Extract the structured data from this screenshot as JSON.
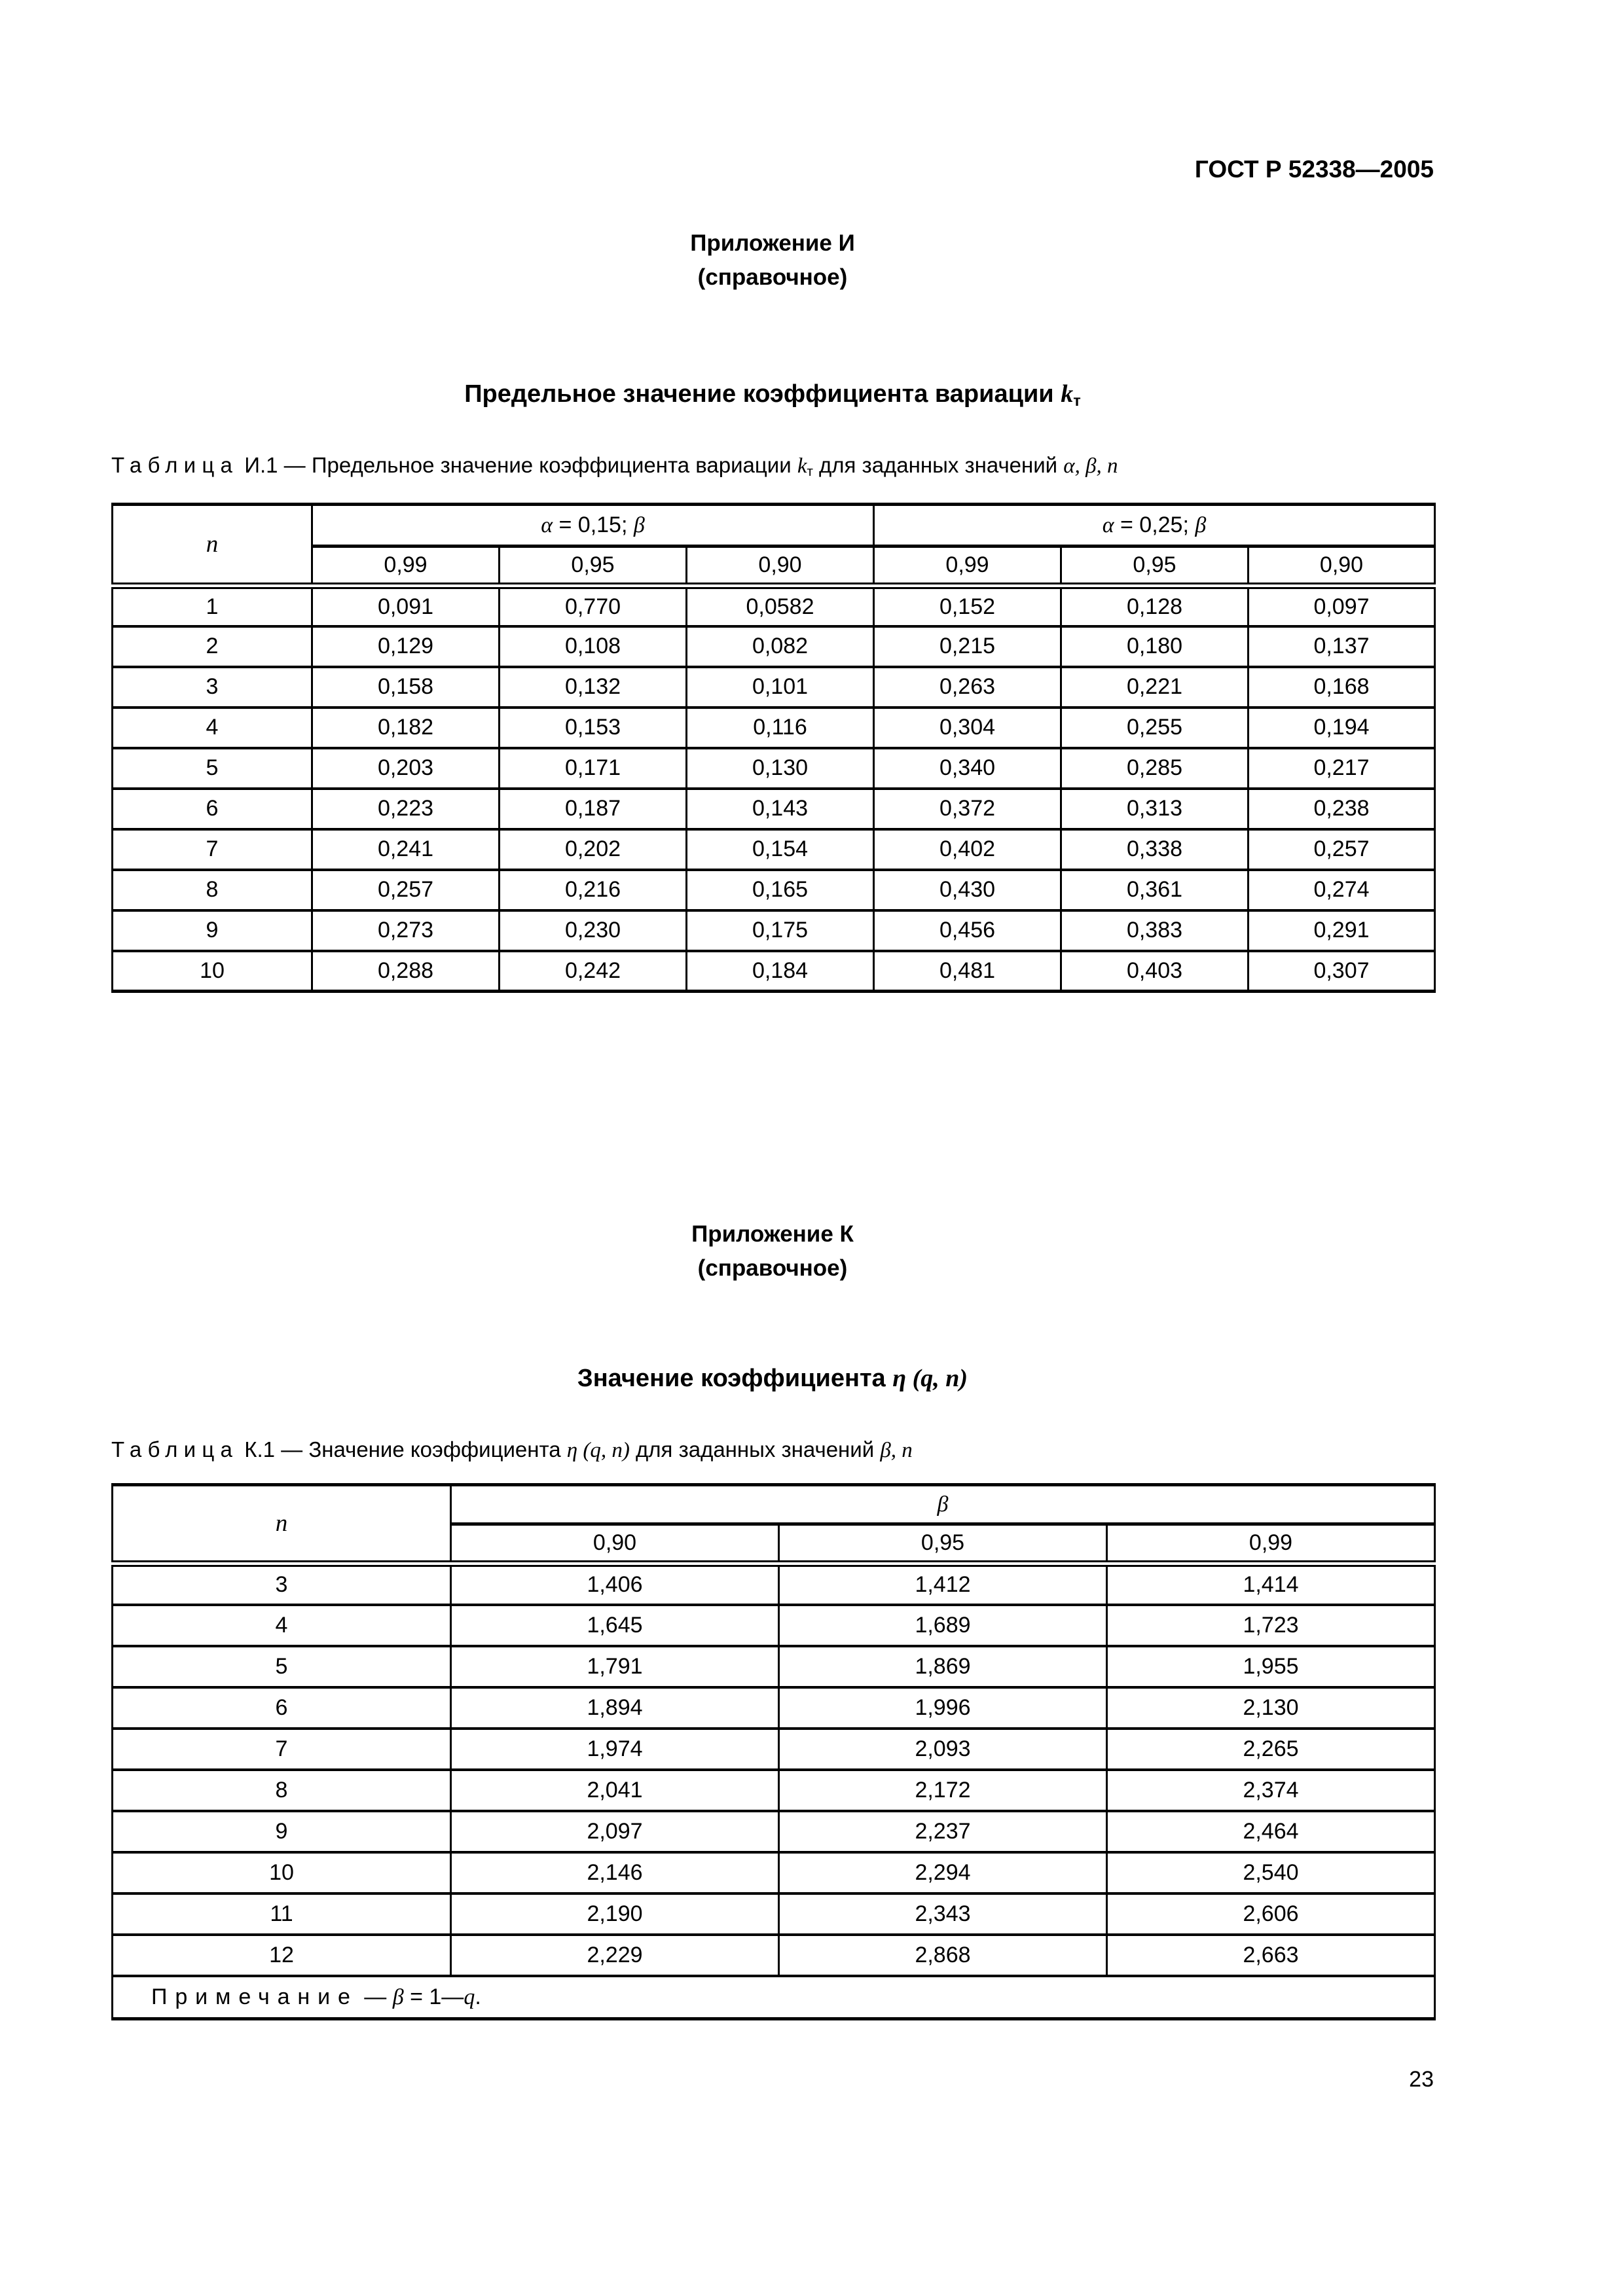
{
  "page": {
    "doc_code": "ГОСТ Р 52338—2005",
    "page_number": "23"
  },
  "appendix_i": {
    "heading": "Приложение И",
    "subheading": "(справочное)",
    "title": {
      "prefix": "Предельное значение коэффициента вариации ",
      "symbol": "k",
      "symbol_sub": "т"
    },
    "caption": {
      "label": "Таблица",
      "number": "И.1",
      "text1": " — Предельное значение коэффициента вариации ",
      "symbol": "k",
      "symbol_sub": "т",
      "text2": " для заданных значений ",
      "params": "α, β, n"
    },
    "table": {
      "corner": "n",
      "groups": [
        {
          "sym1": "α",
          "mid": " = 0,15; ",
          "sym2": "β"
        },
        {
          "sym1": "α",
          "mid": " = 0,25; ",
          "sym2": "β"
        }
      ],
      "subheaders": [
        "0,99",
        "0,95",
        "0,90",
        "0,99",
        "0,95",
        "0,90"
      ],
      "rows": [
        {
          "n": "1",
          "v": [
            "0,091",
            "0,770",
            "0,0582",
            "0,152",
            "0,128",
            "0,097"
          ]
        },
        {
          "n": "2",
          "v": [
            "0,129",
            "0,108",
            "0,082",
            "0,215",
            "0,180",
            "0,137"
          ]
        },
        {
          "n": "3",
          "v": [
            "0,158",
            "0,132",
            "0,101",
            "0,263",
            "0,221",
            "0,168"
          ]
        },
        {
          "n": "4",
          "v": [
            "0,182",
            "0,153",
            "0,116",
            "0,304",
            "0,255",
            "0,194"
          ]
        },
        {
          "n": "5",
          "v": [
            "0,203",
            "0,171",
            "0,130",
            "0,340",
            "0,285",
            "0,217"
          ]
        },
        {
          "n": "6",
          "v": [
            "0,223",
            "0,187",
            "0,143",
            "0,372",
            "0,313",
            "0,238"
          ]
        },
        {
          "n": "7",
          "v": [
            "0,241",
            "0,202",
            "0,154",
            "0,402",
            "0,338",
            "0,257"
          ]
        },
        {
          "n": "8",
          "v": [
            "0,257",
            "0,216",
            "0,165",
            "0,430",
            "0,361",
            "0,274"
          ]
        },
        {
          "n": "9",
          "v": [
            "0,273",
            "0,230",
            "0,175",
            "0,456",
            "0,383",
            "0,291"
          ]
        },
        {
          "n": "10",
          "v": [
            "0,288",
            "0,242",
            "0,184",
            "0,481",
            "0,403",
            "0,307"
          ]
        }
      ]
    }
  },
  "appendix_k": {
    "heading": "Приложение К",
    "subheading": "(справочное)",
    "title": {
      "prefix": "Значение коэффициента ",
      "symbol": "η",
      "args": " (q, n)"
    },
    "caption": {
      "label": "Таблица",
      "number": "К.1",
      "text1": " — Значение коэффициента ",
      "symbol": "η",
      "args": " (q, n)",
      "text2": " для заданных значений ",
      "params": "β, n"
    },
    "table": {
      "corner": "n",
      "group": {
        "sym1": "β"
      },
      "subheaders": [
        "0,90",
        "0,95",
        "0,99"
      ],
      "rows": [
        {
          "n": "3",
          "v": [
            "1,406",
            "1,412",
            "1,414"
          ]
        },
        {
          "n": "4",
          "v": [
            "1,645",
            "1,689",
            "1,723"
          ]
        },
        {
          "n": "5",
          "v": [
            "1,791",
            "1,869",
            "1,955"
          ]
        },
        {
          "n": "6",
          "v": [
            "1,894",
            "1,996",
            "2,130"
          ]
        },
        {
          "n": "7",
          "v": [
            "1,974",
            "2,093",
            "2,265"
          ]
        },
        {
          "n": "8",
          "v": [
            "2,041",
            "2,172",
            "2,374"
          ]
        },
        {
          "n": "9",
          "v": [
            "2,097",
            "2,237",
            "2,464"
          ]
        },
        {
          "n": "10",
          "v": [
            "2,146",
            "2,294",
            "2,540"
          ]
        },
        {
          "n": "11",
          "v": [
            "2,190",
            "2,343",
            "2,606"
          ]
        },
        {
          "n": "12",
          "v": [
            "2,229",
            "2,868",
            "2,663"
          ]
        }
      ],
      "note": {
        "label": "Примечание",
        "mid": " — ",
        "beta": "β",
        "eq": " = 1—",
        "q": "q",
        "end": "."
      }
    }
  }
}
